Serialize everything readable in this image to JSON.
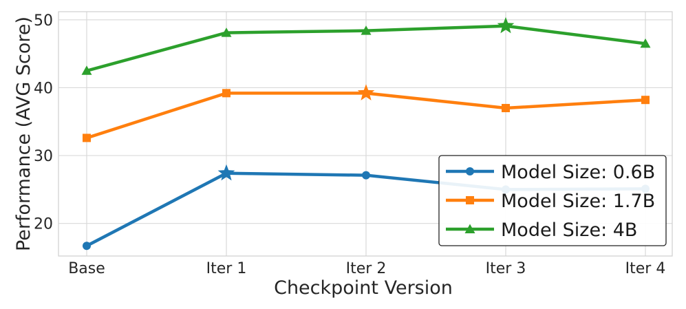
{
  "chart_data": {
    "type": "line",
    "title": "",
    "xlabel": "Checkpoint Version",
    "ylabel": "Performance (AVG Score)",
    "categories": [
      "Base",
      "Iter 1",
      "Iter 2",
      "Iter 3",
      "Iter 4"
    ],
    "ylim": [
      15.2,
      51.2
    ],
    "yticks": [
      20,
      30,
      40,
      50
    ],
    "grid": true,
    "legend_position": "lower-right",
    "series": [
      {
        "name": "Model Size: 0.6B",
        "color": "#1f77b4",
        "marker": "circle",
        "values": [
          16.7,
          27.4,
          27.1,
          25.0,
          25.1
        ],
        "best_index": 1
      },
      {
        "name": "Model Size: 1.7B",
        "color": "#ff7f0e",
        "marker": "square",
        "values": [
          32.6,
          39.2,
          39.2,
          37.0,
          38.2
        ],
        "best_index": 2
      },
      {
        "name": "Model Size: 4B",
        "color": "#2ca02c",
        "marker": "triangle",
        "values": [
          42.5,
          48.1,
          48.4,
          49.1,
          46.5
        ],
        "best_index": 3
      }
    ]
  }
}
